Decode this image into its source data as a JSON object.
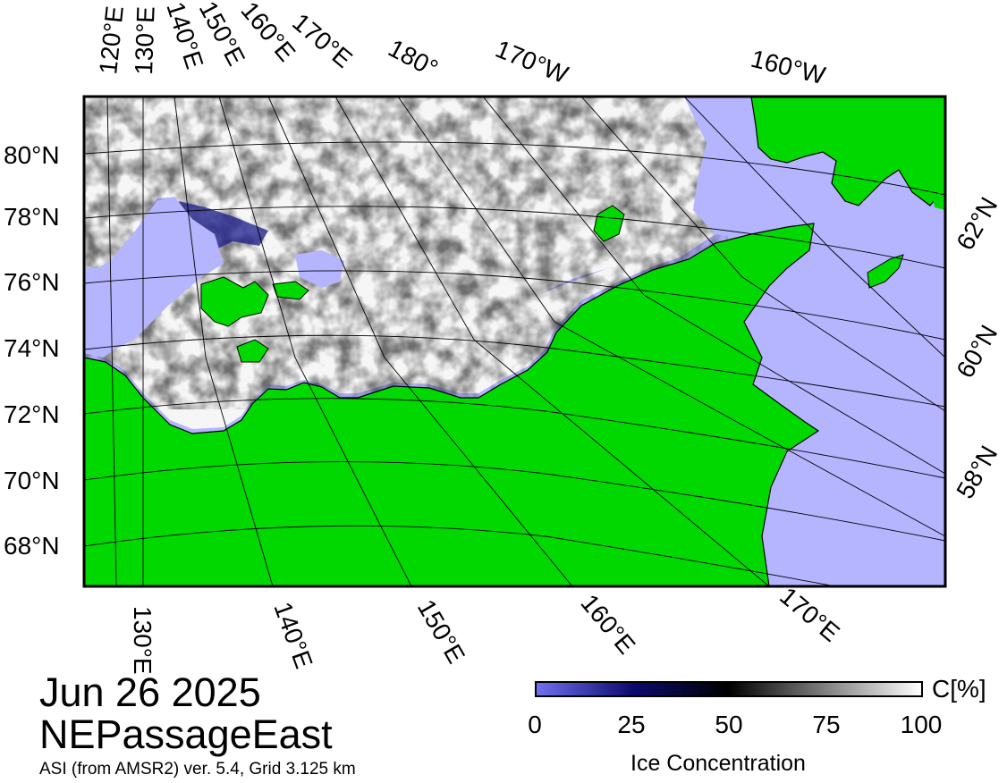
{
  "map": {
    "date": "Jun 26 2025",
    "region": "NEPassageEast",
    "product": "ASI (from AMSR2) ver. 5.4,  Grid 3.125 km",
    "colors": {
      "land": "#00d800",
      "open_water": "#b4b4ff",
      "ice_high": "#ffffff",
      "ice_mid": "#000000",
      "ice_low": "#0b0b6e",
      "frame": "#000000"
    },
    "lat_labels_left": [
      "80°N",
      "78°N",
      "76°N",
      "74°N",
      "72°N",
      "70°N",
      "68°N"
    ],
    "lat_labels_right": [
      "62°N",
      "60°N",
      "58°N"
    ],
    "lon_labels_top": [
      "120°E",
      "130°E",
      "140°E",
      "150°E",
      "160°E",
      "170°E",
      "180°",
      "170°W",
      "160°W"
    ],
    "lon_labels_bottom": [
      "130°E",
      "140°E",
      "150°E",
      "160°E",
      "170°E"
    ]
  },
  "colorbar": {
    "title": "Ice Concentration",
    "unit": "C[%]",
    "ticks": [
      "0",
      "25",
      "50",
      "75",
      "100"
    ],
    "tick_values": [
      0,
      25,
      50,
      75,
      100
    ],
    "stops": [
      "#7070f0",
      "#0b0b6e",
      "#000000",
      "#808080",
      "#ffffff"
    ]
  }
}
